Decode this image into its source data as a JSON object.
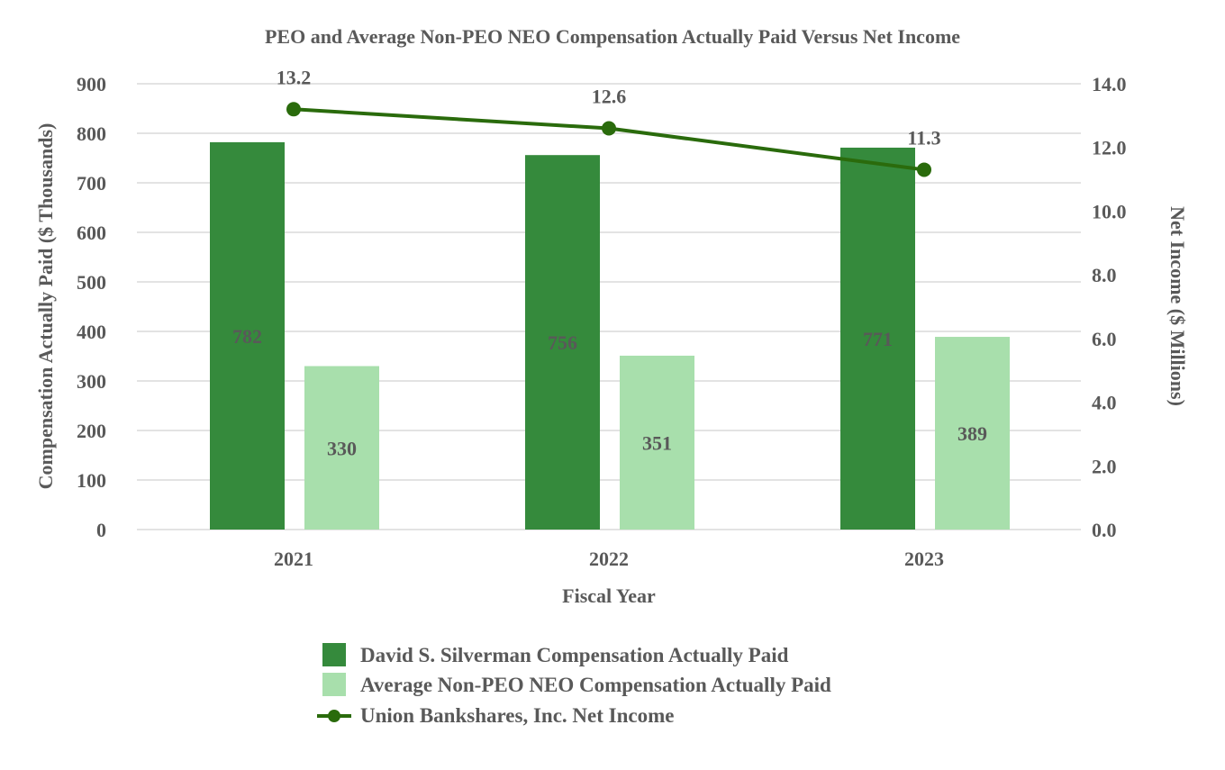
{
  "chart_data": {
    "type": "bar+line",
    "title": "PEO and Average Non-PEO NEO Compensation Actually Paid Versus Net Income",
    "xlabel": "Fiscal Year",
    "ylabel": "Compensation Actually Paid ($ Thousands)",
    "y2label": "Net Income ($ Millions)",
    "categories": [
      "2021",
      "2022",
      "2023"
    ],
    "ylim": [
      0,
      900
    ],
    "yticks": [
      "0",
      "100",
      "200",
      "300",
      "400",
      "500",
      "600",
      "700",
      "800",
      "900"
    ],
    "y2lim": [
      0,
      14
    ],
    "y2ticks": [
      "0.0",
      "2.0",
      "4.0",
      "6.0",
      "8.0",
      "10.0",
      "12.0",
      "14.0"
    ],
    "grid": true,
    "legend_position": "bottom",
    "series": [
      {
        "name": "David S. Silverman Compensation Actually Paid",
        "type": "bar",
        "axis": "left",
        "color": "#358a3c",
        "values": [
          782,
          756,
          771
        ],
        "labels": [
          "782",
          "756",
          "771"
        ]
      },
      {
        "name": "Average Non-PEO NEO Compensation Actually Paid",
        "type": "bar",
        "axis": "left",
        "color": "#a8dfac",
        "values": [
          330,
          351,
          389
        ],
        "labels": [
          "330",
          "351",
          "389"
        ]
      },
      {
        "name": "Union Bankshares, Inc. Net Income",
        "type": "line",
        "axis": "right",
        "color": "#2a6b0c",
        "values": [
          13.2,
          12.6,
          11.3
        ],
        "labels": [
          "13.2",
          "12.6",
          "11.3"
        ]
      }
    ]
  }
}
